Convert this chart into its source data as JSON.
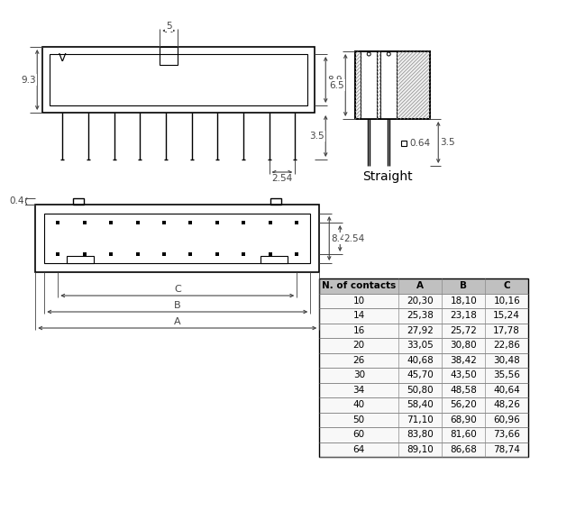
{
  "bg_color": "#ffffff",
  "line_color": "#000000",
  "dim_color": "#444444",
  "table_header_bg": "#c0c0c0",
  "table_border": "#666666",
  "table_headers": [
    "N. of contacts",
    "A",
    "B",
    "C"
  ],
  "table_data": [
    [
      "10",
      "20,30",
      "18,10",
      "10,16"
    ],
    [
      "14",
      "25,38",
      "23,18",
      "15,24"
    ],
    [
      "16",
      "27,92",
      "25,72",
      "17,78"
    ],
    [
      "20",
      "33,05",
      "30,80",
      "22,86"
    ],
    [
      "26",
      "40,68",
      "38,42",
      "30,48"
    ],
    [
      "30",
      "45,70",
      "43,50",
      "35,56"
    ],
    [
      "34",
      "50,80",
      "48,58",
      "40,64"
    ],
    [
      "40",
      "58,40",
      "56,20",
      "48,26"
    ],
    [
      "50",
      "71,10",
      "68,90",
      "60,96"
    ],
    [
      "60",
      "83,80",
      "81,60",
      "73,66"
    ],
    [
      "64",
      "89,10",
      "86,68",
      "78,74"
    ]
  ],
  "side_view_label": "Straight",
  "dim_5": "5",
  "dim_9_3": "9.3",
  "dim_8_9": "8.9",
  "dim_3_5_top": "3.5",
  "dim_2_54_top": "2.54",
  "dim_6_5": "6.5",
  "dim_3_5_side": "3.5",
  "dim_0_64": "□0.64",
  "dim_0_4": "0.4",
  "dim_8_4": "8.4",
  "dim_2_54_bot": "2.54",
  "label_A": "A",
  "label_B": "B",
  "label_C": "C"
}
